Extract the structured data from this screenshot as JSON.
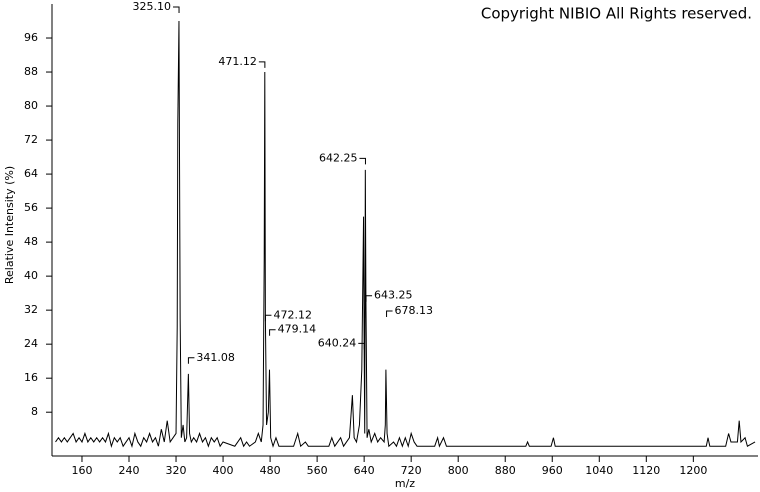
{
  "chart_data": {
    "type": "line",
    "title": "Copyright NIBIO All Rights reserved.",
    "x_label": "m/z",
    "y_label": "Relative Intensity (%)",
    "xlim": [
      109,
      1310
    ],
    "ylim": [
      -2.3,
      104
    ],
    "xticks": [
      160,
      240,
      320,
      400,
      480,
      560,
      640,
      720,
      800,
      880,
      960,
      1040,
      1120,
      1200
    ],
    "yticks": [
      8,
      16,
      24,
      32,
      40,
      48,
      56,
      64,
      72,
      80,
      88,
      96
    ],
    "color": "#000000",
    "x": [
      115,
      120,
      125,
      130,
      135,
      140,
      145,
      150,
      155,
      160,
      165,
      170,
      175,
      180,
      185,
      190,
      195,
      200,
      205,
      210,
      215,
      220,
      225,
      230,
      235,
      240,
      245,
      250,
      255,
      260,
      265,
      270,
      275,
      280,
      285,
      290,
      295,
      300,
      305,
      310,
      315,
      320,
      322,
      323,
      325,
      327,
      329,
      332,
      335,
      338,
      341,
      343,
      346,
      350,
      355,
      360,
      365,
      370,
      375,
      380,
      385,
      390,
      395,
      400,
      420,
      430,
      435,
      440,
      445,
      455,
      460,
      465,
      468,
      470,
      471,
      472,
      474,
      477,
      479,
      481,
      485,
      490,
      495,
      520,
      527,
      532,
      540,
      545,
      580,
      585,
      590,
      600,
      605,
      615,
      620,
      623,
      627,
      632,
      636,
      639,
      640,
      641,
      642,
      643,
      645,
      648,
      652,
      658,
      663,
      668,
      674,
      676,
      677,
      679,
      682,
      690,
      695,
      700,
      705,
      710,
      715,
      720,
      725,
      730,
      760,
      765,
      768,
      775,
      780,
      915,
      918,
      921,
      958,
      962,
      965,
      1222,
      1225,
      1228,
      1255,
      1260,
      1264,
      1275,
      1278,
      1281,
      1288,
      1292,
      1305
    ],
    "values": [
      1,
      2,
      1,
      2,
      1,
      2,
      3,
      1,
      2,
      1,
      3,
      1,
      2,
      1,
      2,
      1,
      2,
      1,
      3,
      0,
      2,
      1,
      2,
      0,
      1,
      2,
      0,
      3,
      1,
      0,
      2,
      1,
      3,
      1,
      2,
      0,
      4,
      1,
      6,
      1,
      2,
      3,
      28,
      76,
      100,
      30,
      2,
      5,
      1,
      2,
      17,
      3,
      1,
      2,
      1,
      3,
      1,
      2,
      0,
      2,
      1,
      2,
      0,
      1,
      0,
      2,
      0,
      1,
      0,
      1,
      3,
      1,
      5,
      44,
      88,
      30,
      5,
      8,
      18,
      2,
      0,
      2,
      0,
      0,
      3,
      0,
      1,
      0,
      0,
      2,
      0,
      2,
      0,
      2,
      12,
      2,
      1,
      5,
      18,
      54,
      24,
      3,
      65,
      35,
      2,
      4,
      1,
      3,
      1,
      2,
      1,
      5,
      18,
      3,
      0,
      1,
      0,
      2,
      0,
      2,
      0,
      3,
      1,
      0,
      0,
      2,
      0,
      2,
      0,
      0,
      1,
      0,
      0,
      2,
      0,
      0,
      2,
      0,
      0,
      3,
      1,
      1,
      6,
      1,
      2,
      0,
      1
    ],
    "peaks": [
      {
        "label": "325.10",
        "x": 325.1,
        "y": 103.3,
        "side": "left"
      },
      {
        "label": "341.08",
        "x": 341.08,
        "y": 20.8,
        "side": "right"
      },
      {
        "label": "471.12",
        "x": 471.12,
        "y": 90.4,
        "side": "left"
      },
      {
        "label": "472.12",
        "x": 472.12,
        "y": 30.8,
        "side": "right"
      },
      {
        "label": "479.14",
        "x": 479.14,
        "y": 27.4,
        "side": "right"
      },
      {
        "label": "642.25",
        "x": 642.25,
        "y": 67.7,
        "side": "left"
      },
      {
        "label": "643.25",
        "x": 643.25,
        "y": 35.4,
        "side": "right"
      },
      {
        "label": "640.24",
        "x": 640.24,
        "y": 24.2,
        "side": "left"
      },
      {
        "label": "678.13",
        "x": 678.13,
        "y": 31.8,
        "side": "right"
      }
    ]
  }
}
